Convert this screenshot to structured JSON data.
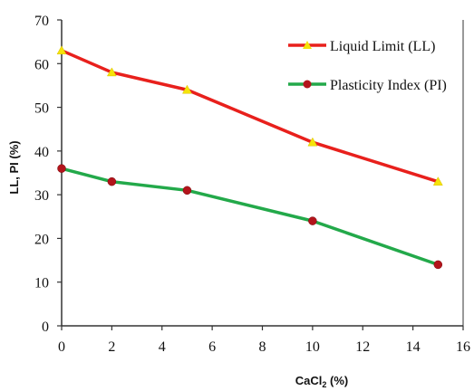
{
  "chart_data": {
    "type": "line",
    "xlabel": "CaCl",
    "xlabel_sub": "2",
    "xlabel_suffix": " (%)",
    "ylabel": "LL,  PI (%)",
    "xlim": [
      0,
      15
    ],
    "ylim": [
      0,
      70
    ],
    "xticks": [
      0,
      2,
      4,
      6,
      8,
      10,
      12,
      14,
      16
    ],
    "xtick_labels": [
      "0",
      "2",
      "4",
      "6",
      "8",
      "10",
      "12",
      "14",
      "16"
    ],
    "yticks": [
      0,
      10,
      20,
      30,
      40,
      50,
      60,
      70
    ],
    "ytick_labels": [
      "0",
      "10",
      "20",
      "30",
      "40",
      "50",
      "60",
      "70"
    ],
    "grid": false,
    "legend_position": "top-right",
    "series": [
      {
        "name": "Liquid Limit (LL)",
        "color": "#e8201c",
        "marker": "triangle",
        "marker_color": "#f5e30a",
        "x": [
          0,
          2,
          5,
          10,
          15
        ],
        "y": [
          63,
          58,
          54,
          42,
          33
        ]
      },
      {
        "name": "Plasticity Index (PI)",
        "color": "#23a94a",
        "marker": "circle",
        "marker_color": "#b3141b",
        "x": [
          0,
          2,
          5,
          10,
          15
        ],
        "y": [
          36,
          33,
          31,
          24,
          14
        ]
      }
    ]
  }
}
